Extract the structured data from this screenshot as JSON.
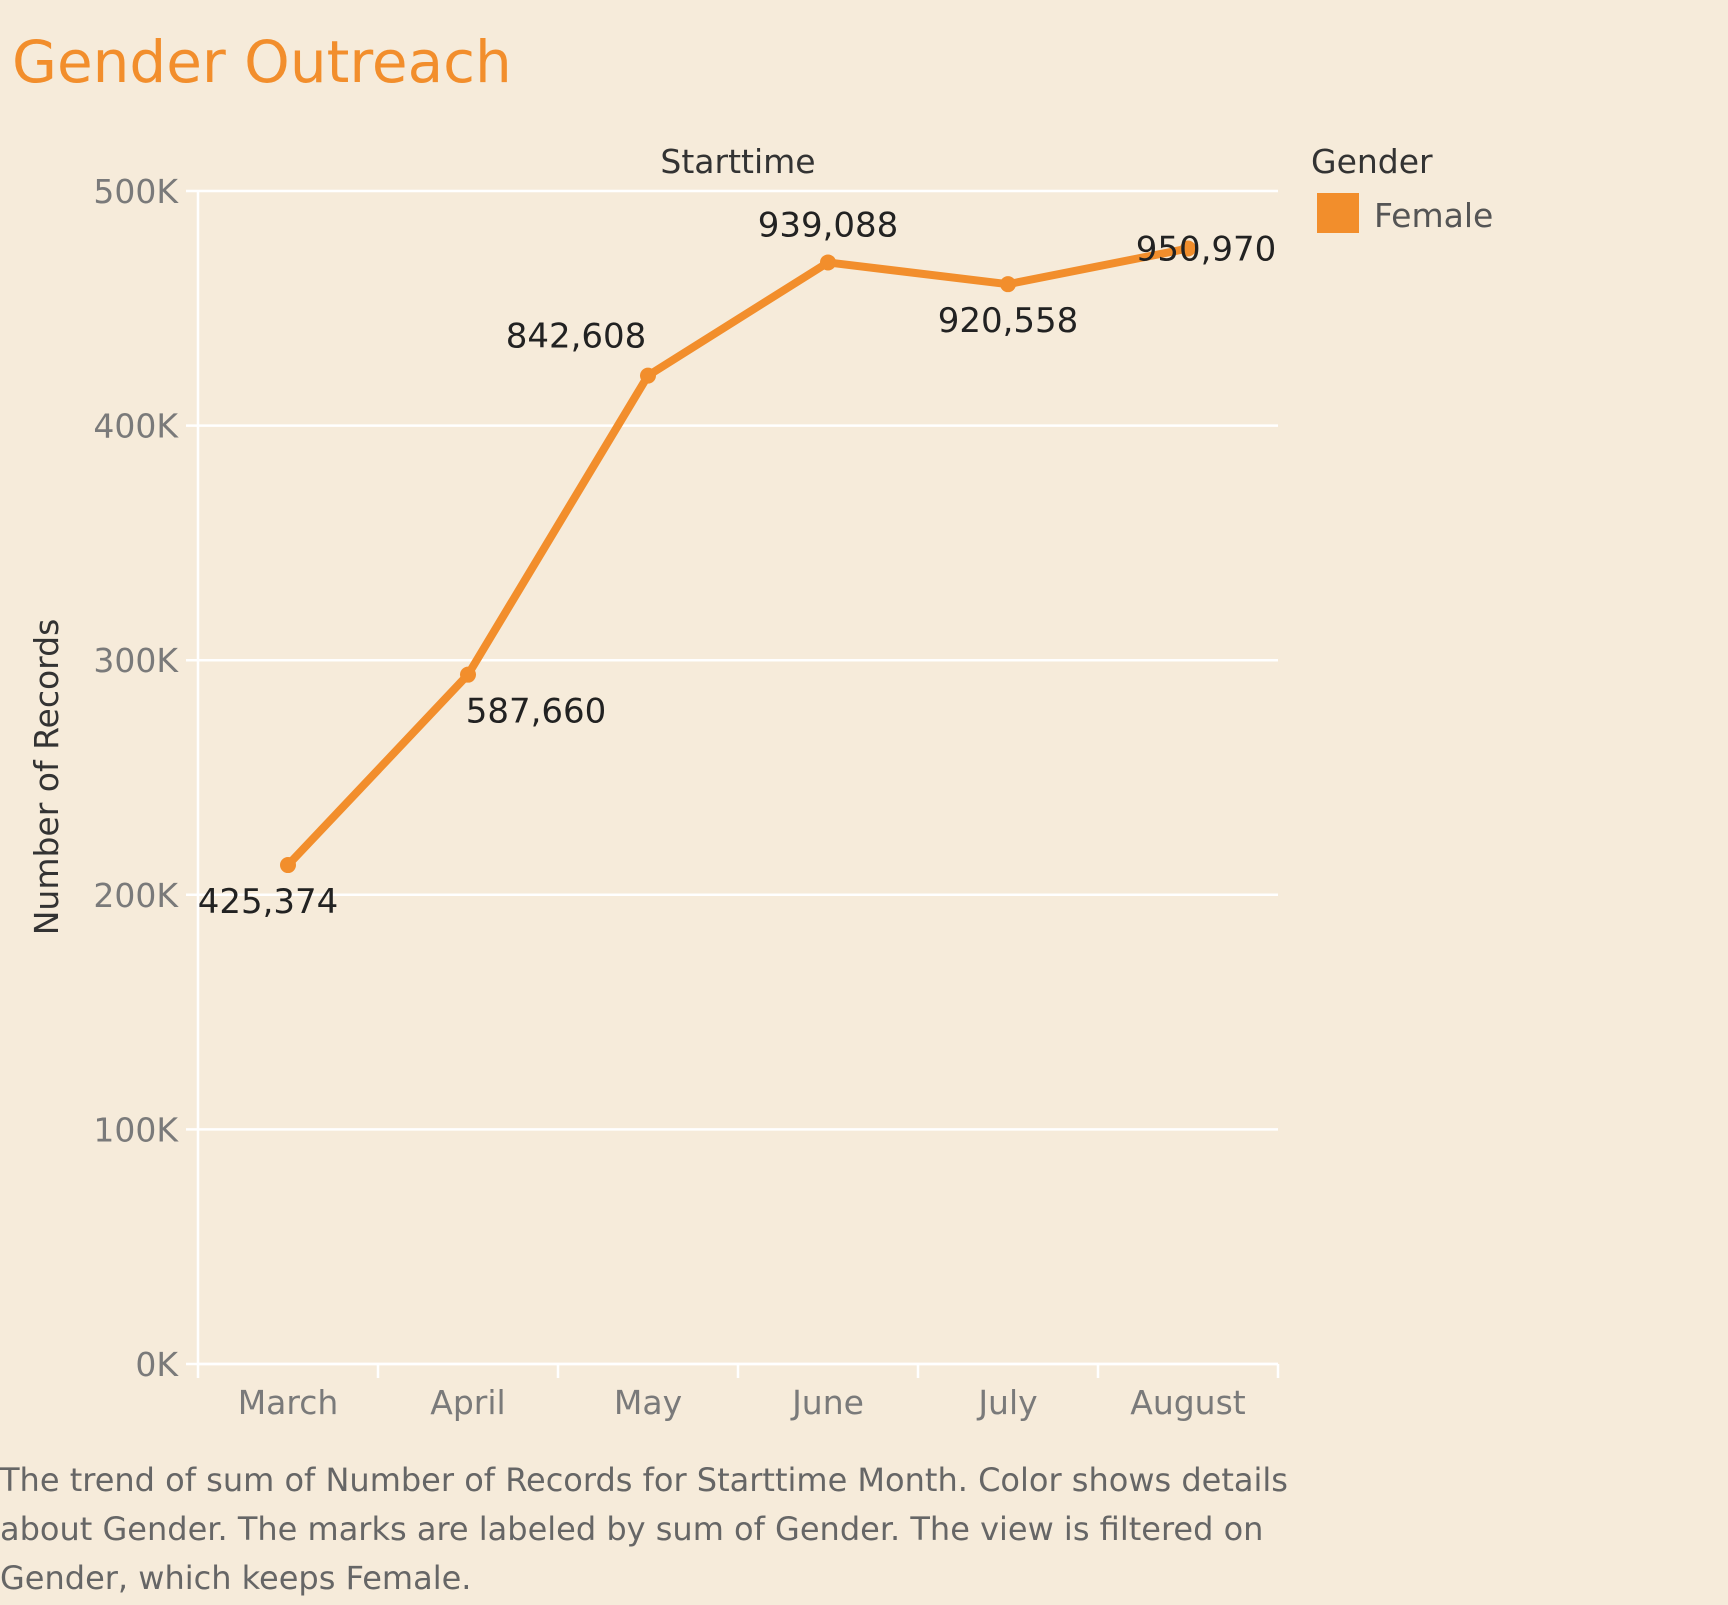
{
  "chart_data": {
    "type": "line",
    "title": "Gender Outreach",
    "column_header": "Starttime",
    "ylabel": "Number of Records",
    "categories": [
      "March",
      "April",
      "May",
      "June",
      "July",
      "August"
    ],
    "y_ticks": [
      "0K",
      "100K",
      "200K",
      "300K",
      "400K",
      "500K"
    ],
    "ylim": [
      0,
      500000
    ],
    "grid": true,
    "legend": {
      "title": "Gender",
      "position": "top-right",
      "entries": [
        {
          "label": "Female",
          "color": "#f28e2c"
        }
      ]
    },
    "series": [
      {
        "name": "Female",
        "color": "#f28e2c",
        "values": [
          212687,
          293830,
          421304,
          469544,
          460279,
          475485
        ],
        "labels": [
          "425,374",
          "587,660",
          "842,608",
          "939,088",
          "920,558",
          "950,970"
        ]
      }
    ],
    "caption": "The trend of sum of Number of Records for Starttime Month.  Color shows details about Gender.  The marks are labeled by sum of Gender. The view is filtered on Gender, which keeps Female."
  }
}
